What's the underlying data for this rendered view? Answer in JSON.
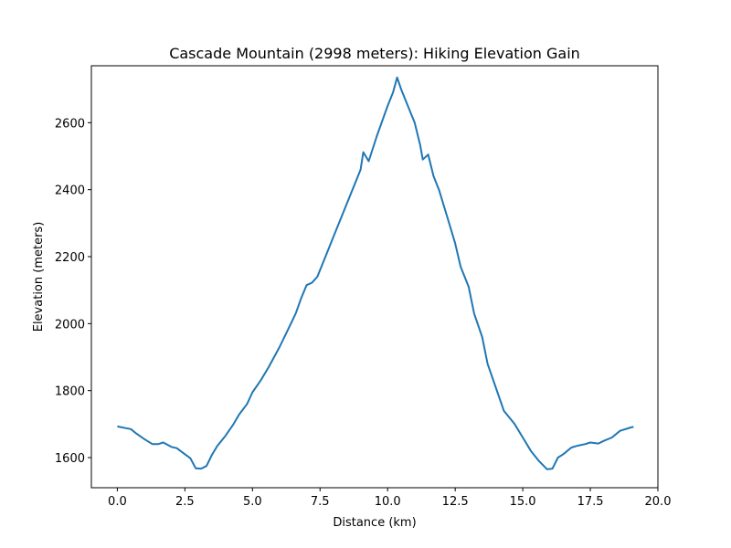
{
  "chart_data": {
    "type": "line",
    "title": "Cascade Mountain (2998 meters): Hiking Elevation Gain",
    "xlabel": "Distance (km)",
    "ylabel": "Elevation (meters)",
    "xlim": [
      -0.96,
      20.0
    ],
    "ylim": [
      1510,
      2770
    ],
    "xticks": [
      0.0,
      2.5,
      5.0,
      7.5,
      10.0,
      12.5,
      15.0,
      17.5,
      20.0
    ],
    "xtick_labels": [
      "0.0",
      "2.5",
      "5.0",
      "7.5",
      "10.0",
      "12.5",
      "15.0",
      "17.5",
      "20.0"
    ],
    "yticks": [
      1600,
      1800,
      2000,
      2200,
      2400,
      2600
    ],
    "ytick_labels": [
      "1600",
      "1800",
      "2000",
      "2200",
      "2400",
      "2600"
    ],
    "grid": false,
    "series": [
      {
        "color": "#1f77b4",
        "x": [
          0.0,
          0.3,
          0.5,
          0.7,
          1.0,
          1.3,
          1.5,
          1.7,
          2.0,
          2.2,
          2.5,
          2.7,
          2.9,
          3.1,
          3.3,
          3.5,
          3.7,
          4.0,
          4.3,
          4.5,
          4.8,
          5.0,
          5.3,
          5.6,
          6.0,
          6.3,
          6.6,
          6.8,
          7.0,
          7.2,
          7.4,
          7.7,
          8.0,
          8.3,
          8.6,
          8.9,
          9.0,
          9.1,
          9.3,
          9.6,
          10.0,
          10.2,
          10.35,
          10.5,
          10.8,
          11.0,
          11.2,
          11.3,
          11.5,
          11.7,
          11.9,
          12.2,
          12.5,
          12.7,
          13.0,
          13.2,
          13.5,
          13.7,
          14.0,
          14.3,
          14.7,
          15.0,
          15.3,
          15.6,
          15.9,
          16.1,
          16.3,
          16.5,
          16.8,
          17.0,
          17.3,
          17.5,
          17.8,
          18.0,
          18.3,
          18.6,
          19.0,
          19.1
        ],
        "y": [
          1693,
          1688,
          1685,
          1672,
          1655,
          1640,
          1640,
          1645,
          1632,
          1628,
          1610,
          1598,
          1568,
          1567,
          1575,
          1608,
          1635,
          1665,
          1700,
          1728,
          1760,
          1795,
          1830,
          1870,
          1930,
          1980,
          2030,
          2075,
          2115,
          2122,
          2140,
          2200,
          2260,
          2320,
          2380,
          2440,
          2460,
          2512,
          2485,
          2560,
          2650,
          2690,
          2735,
          2700,
          2640,
          2600,
          2535,
          2490,
          2505,
          2440,
          2400,
          2320,
          2240,
          2170,
          2110,
          2030,
          1960,
          1880,
          1810,
          1740,
          1700,
          1660,
          1620,
          1590,
          1565,
          1567,
          1600,
          1610,
          1630,
          1635,
          1640,
          1645,
          1642,
          1650,
          1660,
          1680,
          1690,
          1692
        ]
      }
    ]
  }
}
